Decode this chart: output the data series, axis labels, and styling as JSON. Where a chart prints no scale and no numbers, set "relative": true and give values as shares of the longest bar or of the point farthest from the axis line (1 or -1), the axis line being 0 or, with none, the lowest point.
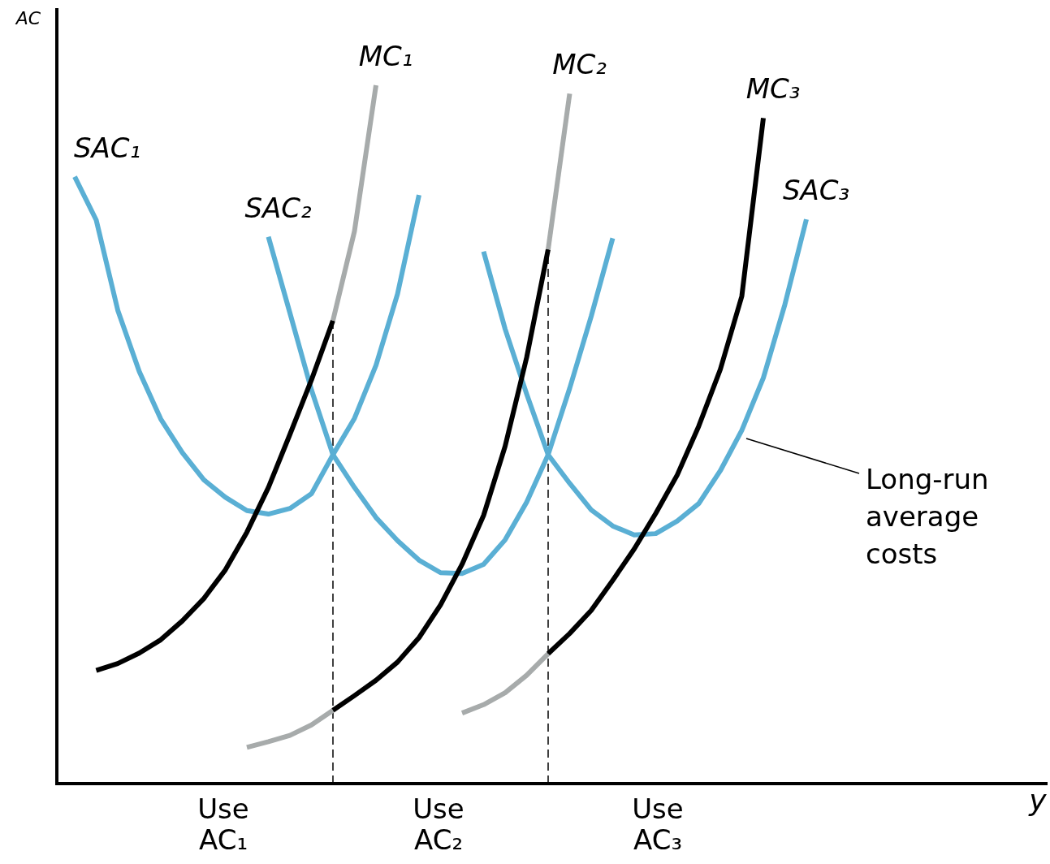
{
  "chart_data": {
    "type": "line",
    "relative": true,
    "ylabel": "AC",
    "marker": "none",
    "line_style": "solid",
    "categories": [
      null,
      null,
      null,
      null,
      null,
      null,
      null,
      null,
      null,
      null,
      null,
      null,
      null,
      null,
      null,
      null,
      null,
      null,
      null,
      null,
      null,
      null,
      null,
      null,
      null,
      null,
      null,
      null,
      null,
      null,
      null,
      null,
      null,
      null,
      null,
      null
    ],
    "series": [
      {
        "name": "SAC₁",
        "color": "#5aafd4",
        "values": [
          null,
          0.869,
          0.807,
          0.678,
          0.59,
          0.522,
          0.474,
          0.435,
          0.41,
          0.391,
          0.386,
          0.394,
          0.415,
          0.471,
          0.523,
          0.599,
          0.701,
          0.843,
          null,
          null,
          null,
          null,
          null,
          null,
          null,
          null,
          null,
          null,
          null,
          null,
          null,
          null,
          null,
          null,
          null,
          null
        ]
      },
      {
        "name": "SAC₂",
        "color": "#5aafd4",
        "values": [
          null,
          null,
          null,
          null,
          null,
          null,
          null,
          null,
          null,
          null,
          0.783,
          0.674,
          0.564,
          0.471,
          0.424,
          0.381,
          0.348,
          0.32,
          0.302,
          0.301,
          0.314,
          0.349,
          0.403,
          0.471,
          0.566,
          0.669,
          0.781,
          null,
          null,
          null,
          null,
          null,
          null,
          null,
          null,
          null
        ]
      },
      {
        "name": "SAC₃",
        "color": "#5aafd4",
        "values": [
          null,
          null,
          null,
          null,
          null,
          null,
          null,
          null,
          null,
          null,
          null,
          null,
          null,
          null,
          null,
          null,
          null,
          null,
          null,
          null,
          0.762,
          0.651,
          0.558,
          0.471,
          0.43,
          0.392,
          0.369,
          0.356,
          0.358,
          0.376,
          0.401,
          0.448,
          0.506,
          0.581,
          0.686,
          0.808
        ]
      },
      {
        "color": "#000000",
        "values": [
          null,
          null,
          0.162,
          0.172,
          0.187,
          0.206,
          0.233,
          0.265,
          0.306,
          0.36,
          0.424,
          0.5,
          0.578,
          0.663,
          null,
          null,
          null,
          null,
          null,
          null,
          null,
          null,
          null,
          null,
          null,
          null,
          null,
          null,
          null,
          null,
          null,
          null,
          null,
          null,
          null,
          null
        ]
      },
      {
        "name": "MC₁",
        "color": "#a7abab",
        "values": [
          null,
          null,
          null,
          null,
          null,
          null,
          null,
          null,
          null,
          null,
          null,
          null,
          null,
          0.663,
          0.791,
          1,
          null,
          null,
          null,
          null,
          null,
          null,
          null,
          null,
          null,
          null,
          null,
          null,
          null,
          null,
          null,
          null,
          null,
          null,
          null,
          null
        ]
      },
      {
        "color": "#a7abab",
        "values": [
          null,
          null,
          null,
          null,
          null,
          null,
          null,
          null,
          null,
          0.052,
          0.06,
          0.069,
          0.084,
          0.105,
          null,
          null,
          null,
          null,
          null,
          null,
          null,
          null,
          null,
          null,
          null,
          null,
          null,
          null,
          null,
          null,
          null,
          null,
          null,
          null,
          null,
          null
        ]
      },
      {
        "color": "#000000",
        "values": [
          null,
          null,
          null,
          null,
          null,
          null,
          null,
          null,
          null,
          null,
          null,
          null,
          null,
          0.105,
          0.126,
          0.148,
          0.174,
          0.209,
          0.256,
          0.314,
          0.384,
          0.483,
          0.61,
          0.765,
          null,
          null,
          null,
          null,
          null,
          null,
          null,
          null,
          null,
          null,
          null,
          null
        ]
      },
      {
        "name": "MC₂",
        "color": "#a7abab",
        "values": [
          null,
          null,
          null,
          null,
          null,
          null,
          null,
          null,
          null,
          null,
          null,
          null,
          null,
          null,
          null,
          null,
          null,
          null,
          null,
          null,
          null,
          null,
          null,
          0.765,
          0.988,
          null,
          null,
          null,
          null,
          null,
          null,
          null,
          null,
          null,
          null,
          null
        ]
      },
      {
        "color": "#a7abab",
        "values": [
          null,
          null,
          null,
          null,
          null,
          null,
          null,
          null,
          null,
          null,
          null,
          null,
          null,
          null,
          null,
          null,
          null,
          null,
          null,
          0.101,
          0.113,
          0.13,
          0.155,
          0.186,
          null,
          null,
          null,
          null,
          null,
          null,
          null,
          null,
          null,
          null,
          null,
          null
        ]
      },
      {
        "name": "MC₃",
        "color": "#000000",
        "values": [
          null,
          null,
          null,
          null,
          null,
          null,
          null,
          null,
          null,
          null,
          null,
          null,
          null,
          null,
          null,
          null,
          null,
          null,
          null,
          null,
          null,
          null,
          null,
          0.186,
          0.215,
          0.248,
          0.291,
          0.336,
          0.387,
          0.442,
          0.512,
          0.593,
          0.698,
          0.953,
          null,
          null
        ]
      }
    ],
    "annotations": [
      "y",
      "Use AC₁",
      "Use AC₂",
      "Use AC₃",
      "Long-run average costs"
    ]
  }
}
